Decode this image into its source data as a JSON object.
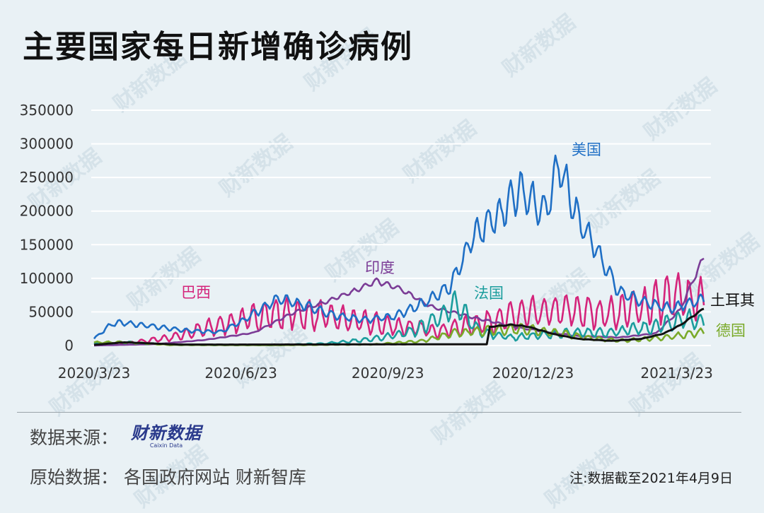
{
  "title": "主要国家每日新增确诊病例",
  "source_label": "数据来源：",
  "logo": {
    "cn": "财新数据",
    "en": "Caixin Data"
  },
  "original_label": "原始数据：  各国政府网站  财新智库",
  "note": "注:数据截至2021年4月9日",
  "watermark": "财新数据",
  "chart_data": {
    "type": "line",
    "title": "",
    "xlabel": "",
    "ylabel": "",
    "x_range": [
      "2020-03-23",
      "2021-04-09"
    ],
    "x_ticks": [
      "2020/3/23",
      "2020/6/23",
      "2020/9/23",
      "2020/12/23",
      "2021/3/23"
    ],
    "y_ticks": [
      0,
      50000,
      100000,
      150000,
      200000,
      250000,
      300000,
      350000
    ],
    "ylim": [
      0,
      350000
    ],
    "grid": true,
    "series": [
      {
        "name": "美国",
        "color": "#1f6fc5",
        "wave": 0.12,
        "points": [
          [
            "2020-03-23",
            10000
          ],
          [
            "2020-04-03",
            32000
          ],
          [
            "2020-04-10",
            34000
          ],
          [
            "2020-05-01",
            28000
          ],
          [
            "2020-05-20",
            22000
          ],
          [
            "2020-06-10",
            20000
          ],
          [
            "2020-06-25",
            38000
          ],
          [
            "2020-07-16",
            70000
          ],
          [
            "2020-08-01",
            60000
          ],
          [
            "2020-08-20",
            45000
          ],
          [
            "2020-09-10",
            38000
          ],
          [
            "2020-09-28",
            44000
          ],
          [
            "2020-10-15",
            62000
          ],
          [
            "2020-11-01",
            88000
          ],
          [
            "2020-11-15",
            160000
          ],
          [
            "2020-12-01",
            195000
          ],
          [
            "2020-12-15",
            230000
          ],
          [
            "2020-12-31",
            200000
          ],
          [
            "2021-01-08",
            270000
          ],
          [
            "2021-01-20",
            190000
          ],
          [
            "2021-02-01",
            140000
          ],
          [
            "2021-02-15",
            80000
          ],
          [
            "2021-03-01",
            65000
          ],
          [
            "2021-03-20",
            55000
          ],
          [
            "2021-04-09",
            70000
          ]
        ]
      },
      {
        "name": "巴西",
        "color": "#d4247b",
        "wave": 0.45,
        "points": [
          [
            "2020-03-23",
            500
          ],
          [
            "2020-04-15",
            4000
          ],
          [
            "2020-05-10",
            12000
          ],
          [
            "2020-05-30",
            24000
          ],
          [
            "2020-06-20",
            36000
          ],
          [
            "2020-07-15",
            48000
          ],
          [
            "2020-08-10",
            45000
          ],
          [
            "2020-09-10",
            34000
          ],
          [
            "2020-10-01",
            28000
          ],
          [
            "2020-10-25",
            22000
          ],
          [
            "2020-11-20",
            33000
          ],
          [
            "2020-12-15",
            46000
          ],
          [
            "2021-01-10",
            52000
          ],
          [
            "2021-02-10",
            48000
          ],
          [
            "2021-03-01",
            58000
          ],
          [
            "2021-03-20",
            72000
          ],
          [
            "2021-04-09",
            66000
          ]
        ]
      },
      {
        "name": "印度",
        "color": "#7b3c96",
        "wave": 0.04,
        "points": [
          [
            "2020-03-23",
            100
          ],
          [
            "2020-05-01",
            2000
          ],
          [
            "2020-06-01",
            8500
          ],
          [
            "2020-07-01",
            19000
          ],
          [
            "2020-07-25",
            48000
          ],
          [
            "2020-08-15",
            65000
          ],
          [
            "2020-09-01",
            80000
          ],
          [
            "2020-09-16",
            96000
          ],
          [
            "2020-10-01",
            84000
          ],
          [
            "2020-10-20",
            58000
          ],
          [
            "2020-11-15",
            42000
          ],
          [
            "2020-12-15",
            26000
          ],
          [
            "2021-01-20",
            14000
          ],
          [
            "2021-02-15",
            12000
          ],
          [
            "2021-03-10",
            18000
          ],
          [
            "2021-03-25",
            53000
          ],
          [
            "2021-04-09",
            132000
          ]
        ]
      },
      {
        "name": "法国",
        "color": "#1b9d9d",
        "wave": 0.35,
        "points": [
          [
            "2020-03-23",
            3000
          ],
          [
            "2020-04-10",
            5000
          ],
          [
            "2020-05-10",
            1000
          ],
          [
            "2020-07-15",
            800
          ],
          [
            "2020-08-15",
            3000
          ],
          [
            "2020-09-15",
            10000
          ],
          [
            "2020-10-10",
            22000
          ],
          [
            "2020-10-25",
            42000
          ],
          [
            "2020-11-05",
            60000
          ],
          [
            "2020-11-20",
            20000
          ],
          [
            "2020-12-10",
            12000
          ],
          [
            "2021-01-10",
            18000
          ],
          [
            "2021-02-10",
            20000
          ],
          [
            "2021-03-10",
            28000
          ],
          [
            "2021-03-28",
            40000
          ],
          [
            "2021-04-09",
            35000
          ]
        ]
      },
      {
        "name": "德国",
        "color": "#7aaa2a",
        "wave": 0.3,
        "points": [
          [
            "2020-03-23",
            4500
          ],
          [
            "2020-04-10",
            5000
          ],
          [
            "2020-05-10",
            800
          ],
          [
            "2020-07-15",
            500
          ],
          [
            "2020-09-15",
            1800
          ],
          [
            "2020-10-15",
            7000
          ],
          [
            "2020-11-05",
            19000
          ],
          [
            "2020-12-15",
            25000
          ],
          [
            "2021-01-05",
            20000
          ],
          [
            "2021-01-25",
            12000
          ],
          [
            "2021-02-15",
            7000
          ],
          [
            "2021-03-15",
            12000
          ],
          [
            "2021-04-09",
            20000
          ]
        ]
      },
      {
        "name": "土耳其",
        "color": "#111111",
        "wave": 0.02,
        "points": [
          [
            "2020-03-23",
            1000
          ],
          [
            "2020-04-11",
            4800
          ],
          [
            "2020-05-15",
            1500
          ],
          [
            "2020-06-15",
            1400
          ],
          [
            "2020-09-15",
            1700
          ],
          [
            "2020-11-24",
            1900
          ],
          [
            "2020-11-26",
            28000
          ],
          [
            "2020-12-10",
            31000
          ],
          [
            "2020-12-20",
            28000
          ],
          [
            "2021-01-05",
            17000
          ],
          [
            "2021-01-20",
            10000
          ],
          [
            "2021-02-10",
            7000
          ],
          [
            "2021-03-01",
            10000
          ],
          [
            "2021-03-15",
            18000
          ],
          [
            "2021-03-25",
            30000
          ],
          [
            "2021-04-09",
            55000
          ]
        ]
      }
    ]
  }
}
